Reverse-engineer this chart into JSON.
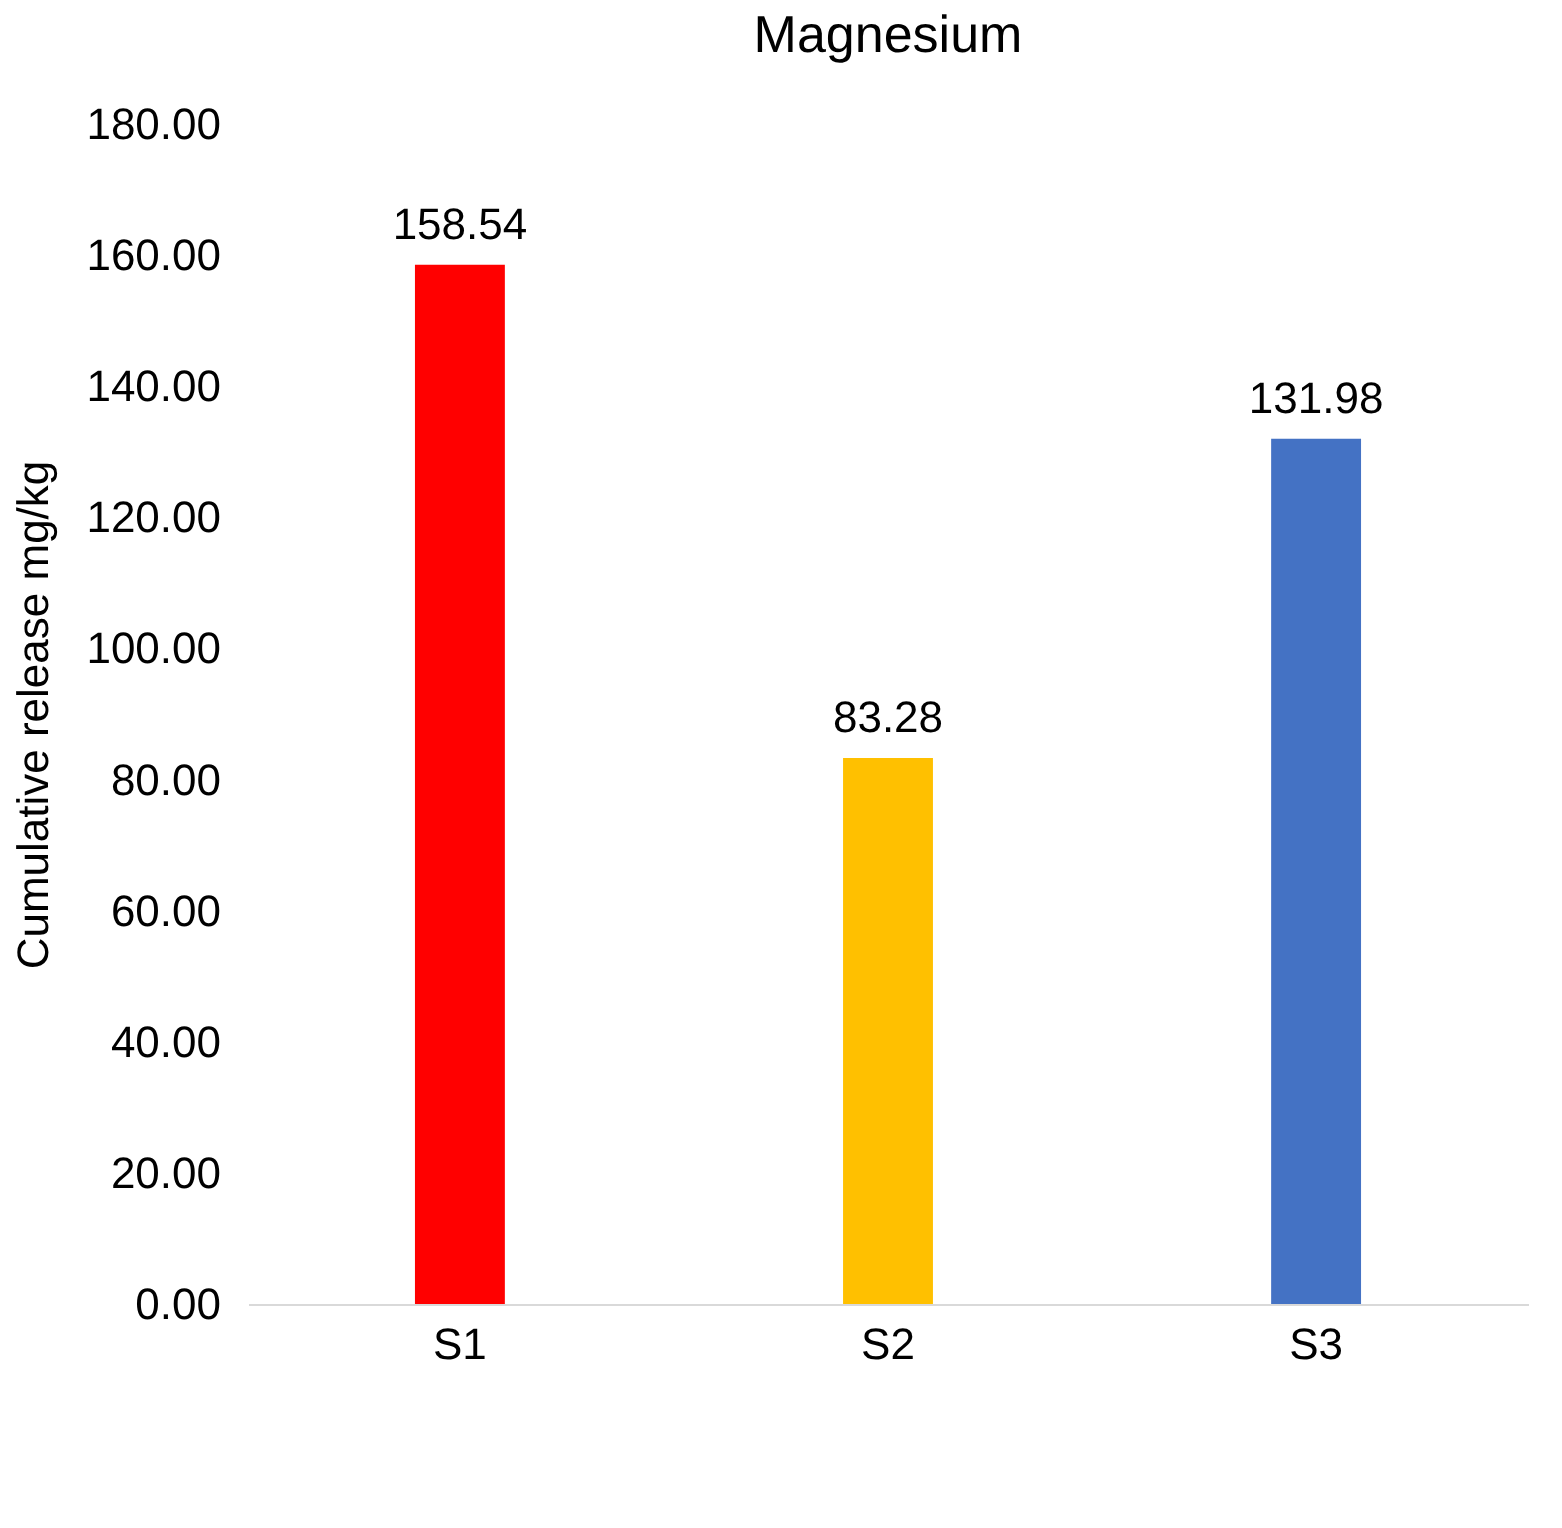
{
  "chart_data": {
    "type": "bar",
    "title": "Magnesium",
    "ylabel": "Cumulative release mg/kg",
    "categories": [
      "S1",
      "S2",
      "S3"
    ],
    "values": [
      158.54,
      83.28,
      131.98
    ],
    "colors": [
      "#ff0000",
      "#ffc000",
      "#4472c4"
    ],
    "ylim": [
      0,
      180
    ],
    "yticks": [
      {
        "value": 0,
        "label": "0.00"
      },
      {
        "value": 20,
        "label": "20.00"
      },
      {
        "value": 40,
        "label": "40.00"
      },
      {
        "value": 60,
        "label": "60.00"
      },
      {
        "value": 80,
        "label": "80.00"
      },
      {
        "value": 100,
        "label": "100.00"
      },
      {
        "value": 120,
        "label": "120.00"
      },
      {
        "value": 140,
        "label": "140.00"
      },
      {
        "value": 160,
        "label": "160.00"
      },
      {
        "value": 180,
        "label": "180.00"
      }
    ],
    "data_labels": true,
    "grid": false
  }
}
